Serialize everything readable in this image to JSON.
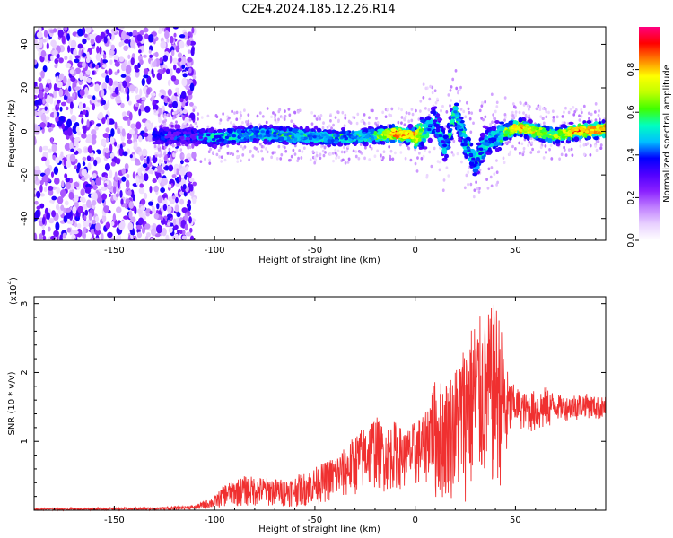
{
  "title": "C2E4.2024.185.12.26.R14",
  "chart_data": [
    {
      "type": "heatmap",
      "xlabel": "Height of straight line (km)",
      "ylabel": "Frequency (Hz)",
      "xlim": [
        -190,
        95
      ],
      "ylim": [
        -50,
        48
      ],
      "x_ticks": [
        -150,
        -100,
        -50,
        0,
        50
      ],
      "y_ticks": [
        -40,
        -20,
        0,
        20,
        40
      ],
      "colorbar": {
        "label": "Normalized spectral amplitude",
        "range": [
          0,
          1
        ],
        "ticks": [
          0.0,
          0.2,
          0.4,
          0.6,
          0.8
        ],
        "tick_labels": [
          "0.0",
          "0.2",
          "0.4",
          "0.6",
          "0.8"
        ],
        "colors": [
          "#ffffff",
          "#e8d0ff",
          "#c080ff",
          "#8a20ff",
          "#5000ff",
          "#0000ff",
          "#00c0ff",
          "#00ffc0",
          "#40ff00",
          "#c0ff00",
          "#ffff00",
          "#ff8000",
          "#ff0000",
          "#ff0080"
        ]
      },
      "ridge": [
        {
          "x": -130,
          "y": -2,
          "amp": 0.25
        },
        {
          "x": -110,
          "y": -2,
          "amp": 0.3
        },
        {
          "x": -100,
          "y": -3,
          "amp": 0.42
        },
        {
          "x": -80,
          "y": -1,
          "amp": 0.45
        },
        {
          "x": -60,
          "y": -2,
          "amp": 0.48
        },
        {
          "x": -40,
          "y": -3,
          "amp": 0.45
        },
        {
          "x": -20,
          "y": -2,
          "amp": 0.5
        },
        {
          "x": -10,
          "y": -1,
          "amp": 0.9
        },
        {
          "x": 0,
          "y": -2,
          "amp": 0.85
        },
        {
          "x": 5,
          "y": 0,
          "amp": 0.5
        },
        {
          "x": 10,
          "y": 5,
          "amp": 0.4
        },
        {
          "x": 15,
          "y": -8,
          "amp": 0.4
        },
        {
          "x": 20,
          "y": 10,
          "amp": 0.5
        },
        {
          "x": 25,
          "y": -5,
          "amp": 0.45
        },
        {
          "x": 30,
          "y": -15,
          "amp": 0.4
        },
        {
          "x": 35,
          "y": -5,
          "amp": 0.45
        },
        {
          "x": 40,
          "y": -3,
          "amp": 0.4
        },
        {
          "x": 50,
          "y": 2,
          "amp": 0.85
        },
        {
          "x": 60,
          "y": 0,
          "amp": 0.7
        },
        {
          "x": 70,
          "y": -2,
          "amp": 0.6
        },
        {
          "x": 80,
          "y": 0,
          "amp": 0.85
        },
        {
          "x": 95,
          "y": 1,
          "amp": 0.85
        }
      ]
    },
    {
      "type": "line",
      "xlabel": "Height of straight line (km)",
      "ylabel": "SNR (10 * v/v)",
      "y_multiplier_label": "(x10",
      "y_multiplier_exp": "4",
      "y_multiplier_close": ")",
      "xlim": [
        -190,
        95
      ],
      "ylim": [
        0,
        3.1
      ],
      "x_ticks": [
        -150,
        -100,
        -50,
        0,
        50
      ],
      "y_ticks": [
        1,
        2,
        3
      ],
      "color": "#f03030",
      "envelope": {
        "x": [
          -190,
          -130,
          -110,
          -100,
          -95,
          -85,
          -75,
          -65,
          -55,
          -45,
          -35,
          -30,
          -25,
          -20,
          -15,
          -10,
          -5,
          0,
          5,
          8,
          10,
          15,
          20,
          25,
          30,
          35,
          40,
          42,
          45,
          47,
          50,
          55,
          60,
          65,
          70,
          75,
          80,
          85,
          90,
          95
        ],
        "upper": [
          0.03,
          0.04,
          0.07,
          0.2,
          0.38,
          0.5,
          0.48,
          0.45,
          0.55,
          0.7,
          0.9,
          1.1,
          1.25,
          1.4,
          1.2,
          1.3,
          1.15,
          1.3,
          1.45,
          1.8,
          1.9,
          1.9,
          2.1,
          2.5,
          2.85,
          2.8,
          3.05,
          2.9,
          2.2,
          1.9,
          1.8,
          1.7,
          1.75,
          1.8,
          1.7,
          1.65,
          1.7,
          1.7,
          1.65,
          1.65
        ],
        "lower": [
          0.0,
          0.0,
          0.01,
          0.02,
          0.05,
          0.05,
          0.05,
          0.05,
          0.05,
          0.1,
          0.15,
          0.2,
          0.25,
          0.3,
          0.25,
          0.3,
          0.3,
          0.3,
          0.35,
          0.5,
          0.1,
          0.1,
          0.15,
          0.1,
          0.2,
          0.3,
          0.2,
          0.3,
          0.35,
          1.0,
          1.2,
          1.15,
          1.1,
          1.1,
          1.3,
          1.3,
          1.3,
          1.35,
          1.3,
          1.3
        ]
      }
    }
  ]
}
